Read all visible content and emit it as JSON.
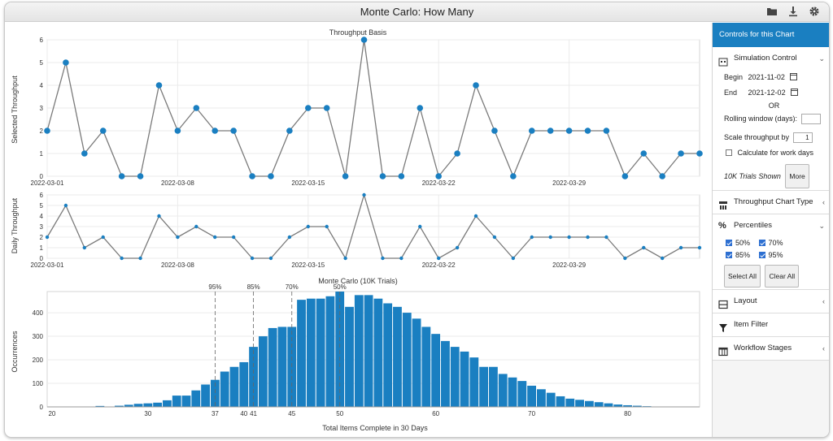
{
  "window": {
    "title": "Monte Carlo: How Many"
  },
  "toolbar": {
    "icons": [
      "folder-icon",
      "download-icon",
      "gear-icon"
    ]
  },
  "colors": {
    "accent": "#1a7fc1",
    "bar": "#1a7fc1",
    "line": "#7a7a7a",
    "point": "#1a7fc1"
  },
  "panel": {
    "title": "Controls for this Chart",
    "simulation": {
      "label": "Simulation Control",
      "begin_label": "Begin",
      "begin_value": "2021-11-02",
      "end_label": "End",
      "end_value": "2021-12-02",
      "or_label": "OR",
      "rolling_label": "Rolling window (days):",
      "rolling_value": "",
      "scale_label": "Scale throughput by",
      "scale_value": "1",
      "workdays_label": "Calculate for work days",
      "trials_shown": "10K Trials Shown",
      "more_label": "More"
    },
    "throughput_chart_type": {
      "label": "Throughput Chart Type"
    },
    "percentiles": {
      "label": "Percentiles",
      "items": [
        {
          "label": "50%",
          "checked": true
        },
        {
          "label": "70%",
          "checked": true
        },
        {
          "label": "85%",
          "checked": true
        },
        {
          "label": "95%",
          "checked": true
        }
      ],
      "select_all_label": "Select All",
      "clear_all_label": "Clear All"
    },
    "layout": {
      "label": "Layout"
    },
    "item_filter": {
      "label": "Item Filter"
    },
    "workflow_stages": {
      "label": "Workflow Stages"
    }
  },
  "chart_data": [
    {
      "type": "line",
      "title": "Throughput Basis",
      "ylabel": "Selected Throughput",
      "ylim": [
        0,
        6
      ],
      "yticks": [
        0,
        1,
        2,
        3,
        4,
        5,
        6
      ],
      "x_start": "2022-03-01",
      "x_tick_labels": [
        "2022-03-01",
        "2022-03-08",
        "2022-03-15",
        "2022-03-22",
        "2022-03-29"
      ],
      "values": [
        2,
        5,
        1,
        2,
        0,
        0,
        4,
        2,
        3,
        2,
        2,
        0,
        0,
        2,
        3,
        3,
        0,
        6,
        0,
        0,
        3,
        0,
        1,
        4,
        2,
        0,
        2,
        2,
        2,
        2,
        2,
        0,
        1,
        0,
        1,
        1
      ]
    },
    {
      "type": "line",
      "title": "",
      "ylabel": "Daily Throughput",
      "ylim": [
        0,
        6
      ],
      "yticks": [
        0,
        1,
        2,
        3,
        4,
        5,
        6
      ],
      "x_start": "2022-03-01",
      "x_tick_labels": [
        "2022-03-01",
        "2022-03-08",
        "2022-03-15",
        "2022-03-22",
        "2022-03-29"
      ],
      "values": [
        2,
        5,
        1,
        2,
        0,
        0,
        4,
        2,
        3,
        2,
        2,
        0,
        0,
        2,
        3,
        3,
        0,
        6,
        0,
        0,
        3,
        0,
        1,
        4,
        2,
        0,
        2,
        2,
        2,
        2,
        2,
        0,
        1,
        0,
        1,
        1
      ]
    },
    {
      "type": "bar",
      "title": "Monte Carlo (10K Trials)",
      "xlabel": "Total Items Complete in 30 Days",
      "ylabel": "Occurrences",
      "ylim": [
        0,
        490
      ],
      "yticks": [
        0,
        100,
        200,
        300,
        400
      ],
      "xlim": [
        19.5,
        87.5
      ],
      "xticks": [
        20,
        30,
        37,
        40,
        41,
        45,
        50,
        60,
        70,
        80
      ],
      "x": [
        20,
        21,
        22,
        23,
        24,
        25,
        26,
        27,
        28,
        29,
        30,
        31,
        32,
        33,
        34,
        35,
        36,
        37,
        38,
        39,
        40,
        41,
        42,
        43,
        44,
        45,
        46,
        47,
        48,
        49,
        50,
        51,
        52,
        53,
        54,
        55,
        56,
        57,
        58,
        59,
        60,
        61,
        62,
        63,
        64,
        65,
        66,
        67,
        68,
        69,
        70,
        71,
        72,
        73,
        74,
        75,
        76,
        77,
        78,
        79,
        80,
        81,
        82,
        83,
        84,
        85,
        86,
        87
      ],
      "values": [
        0,
        0,
        0,
        0,
        0,
        4,
        0,
        5,
        9,
        13,
        15,
        18,
        28,
        48,
        48,
        70,
        95,
        115,
        150,
        170,
        190,
        255,
        300,
        335,
        340,
        340,
        455,
        460,
        460,
        470,
        490,
        425,
        475,
        475,
        460,
        440,
        425,
        400,
        375,
        340,
        310,
        280,
        255,
        235,
        210,
        170,
        170,
        140,
        125,
        110,
        90,
        75,
        60,
        45,
        35,
        30,
        25,
        20,
        15,
        10,
        7,
        5,
        3,
        0,
        0,
        0,
        0,
        0
      ],
      "percentiles": [
        {
          "label": "95%",
          "value": 37
        },
        {
          "label": "85%",
          "value": 41
        },
        {
          "label": "70%",
          "value": 45
        },
        {
          "label": "50%",
          "value": 50
        }
      ]
    }
  ]
}
